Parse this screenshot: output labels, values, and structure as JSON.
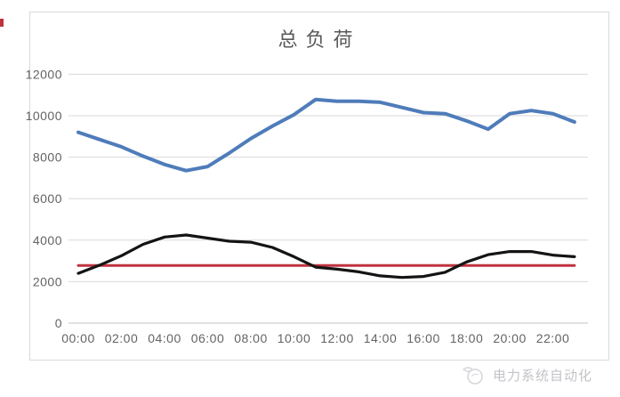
{
  "chart_data": {
    "type": "line",
    "title": "总负荷",
    "legend": "none",
    "grid": "horizontal-only",
    "x_axis": {
      "tick_labels": [
        "00:00",
        "02:00",
        "04:00",
        "06:00",
        "08:00",
        "10:00",
        "12:00",
        "14:00",
        "16:00",
        "18:00",
        "20:00",
        "22:00"
      ],
      "tick_hours": [
        0,
        2,
        4,
        6,
        8,
        10,
        12,
        14,
        16,
        18,
        20,
        22
      ],
      "hours_range": [
        0,
        23
      ]
    },
    "y_axis": {
      "tick_values": [
        0,
        2000,
        4000,
        6000,
        8000,
        10000,
        12000
      ],
      "tick_labels": [
        "0",
        "2000",
        "4000",
        "6000",
        "8000",
        "10000",
        "12000"
      ],
      "ylim": [
        0,
        12000
      ]
    },
    "x_hours": [
      0,
      1,
      2,
      3,
      4,
      5,
      6,
      7,
      8,
      9,
      10,
      11,
      12,
      13,
      14,
      15,
      16,
      17,
      18,
      19,
      20,
      21,
      22,
      23
    ],
    "series": [
      {
        "id": "total-load-blue-line",
        "color": "#4f7cba",
        "stroke_width": 4,
        "values": [
          9200,
          8850,
          8500,
          8050,
          7650,
          7350,
          7550,
          8200,
          8900,
          9500,
          10050,
          10780,
          10700,
          10700,
          10650,
          10400,
          10150,
          10100,
          9750,
          9350,
          10100,
          10250,
          10100,
          9700
        ]
      },
      {
        "id": "reference-red-line",
        "color": "#c0323e",
        "stroke_width": 3,
        "values": [
          2780,
          2780,
          2780,
          2780,
          2780,
          2780,
          2780,
          2780,
          2780,
          2780,
          2780,
          2780,
          2780,
          2780,
          2780,
          2780,
          2780,
          2780,
          2780,
          2780,
          2780,
          2780,
          2780,
          2780
        ]
      },
      {
        "id": "secondary-black-line",
        "color": "#141414",
        "stroke_width": 3.2,
        "values": [
          2400,
          2800,
          3250,
          3800,
          4150,
          4250,
          4100,
          3950,
          3900,
          3650,
          3200,
          2700,
          2600,
          2470,
          2280,
          2200,
          2250,
          2450,
          2950,
          3300,
          3450,
          3450,
          3280,
          3200
        ]
      }
    ]
  },
  "watermark": {
    "text": "电力系统自动化"
  }
}
